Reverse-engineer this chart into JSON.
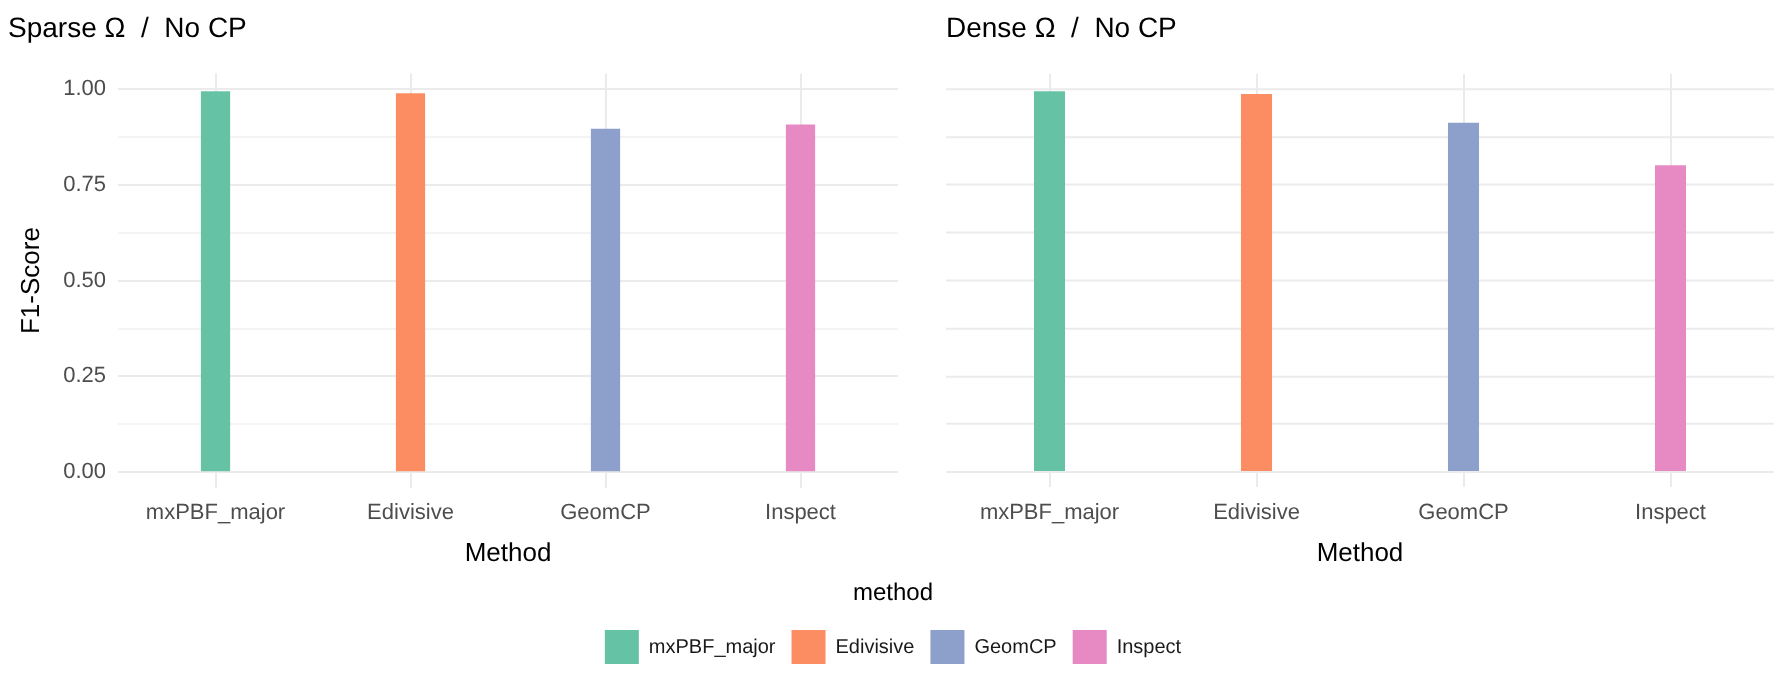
{
  "chart_data": [
    {
      "type": "bar",
      "title": "Sparse Ω  /  No CP",
      "xlabel": "Method",
      "ylabel": "F1-Score",
      "legend_title": "method",
      "legend": "bottom",
      "categories": [
        "mxPBF_major",
        "Edivisive",
        "GeomCP",
        "Inspect"
      ],
      "series": [
        {
          "name": "mxPBF_major",
          "color": "#66c2a5",
          "values": [
            0.994,
            null,
            null,
            null
          ]
        },
        {
          "name": "Edivisive",
          "color": "#fc8d62",
          "values": [
            null,
            0.989,
            null,
            null
          ]
        },
        {
          "name": "GeomCP",
          "color": "#8da0cb",
          "values": [
            null,
            null,
            0.896,
            null
          ]
        },
        {
          "name": "Inspect",
          "color": "#e78ac3",
          "values": [
            null,
            null,
            null,
            0.907
          ]
        }
      ],
      "ylim": [
        -0.04,
        1.04
      ],
      "yticks": [
        {
          "value": 0,
          "label": "0.00"
        },
        {
          "value": 0.125,
          "label": null
        },
        {
          "value": 0.25,
          "label": "0.25"
        },
        {
          "value": 0.375,
          "label": null
        },
        {
          "value": 0.5,
          "label": "0.50"
        },
        {
          "value": 0.625,
          "label": null
        },
        {
          "value": 0.75,
          "label": "0.75"
        },
        {
          "value": 0.875,
          "label": null
        },
        {
          "value": 1,
          "label": "1.00"
        }
      ],
      "grid": true
    },
    {
      "type": "bar",
      "title": "Dense Ω  /  No CP",
      "xlabel": "Method",
      "categories": [
        "mxPBF_major",
        "Edivisive",
        "GeomCP",
        "Inspect"
      ],
      "series": [
        {
          "color": "#66c2a5",
          "values": [
            0.994,
            null,
            null,
            null
          ]
        },
        {
          "color": "#fc8d62",
          "values": [
            null,
            0.987,
            null,
            null
          ]
        },
        {
          "color": "#8da0cb",
          "values": [
            null,
            null,
            0.912,
            null
          ]
        },
        {
          "color": "#e78ac3",
          "values": [
            null,
            null,
            null,
            0.801
          ]
        }
      ],
      "ylim": [
        -0.04,
        1.04
      ],
      "yticks": [
        0,
        0.125,
        0.25,
        0.375,
        0.5,
        0.625,
        0.75,
        0.875,
        1
      ],
      "grid": true,
      "tick_labels": "x"
    }
  ]
}
